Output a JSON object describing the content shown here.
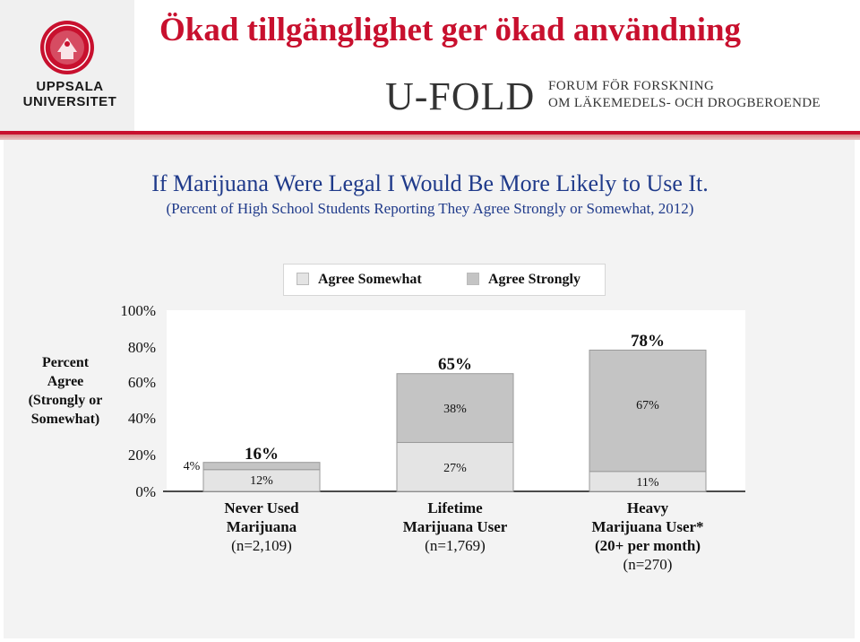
{
  "header": {
    "title": "Ökad tillgänglighet ger ökad användning",
    "university": "UPPSALA UNIVERSITET",
    "university_line1": "UPPSALA",
    "university_line2": "UNIVERSITET",
    "brand": "U-FOLD",
    "forum_line1": "FORUM FÖR FORSKNING",
    "forum_line2": "OM LÄKEMEDELS- OCH DROGBEROENDE"
  },
  "colors": {
    "title_red": "#c8102e",
    "chart_title_blue": "#1f3a8a",
    "agree_somewhat": "#e4e4e4",
    "agree_strongly": "#c4c4c4"
  },
  "chart_data": {
    "type": "bar",
    "stacked": true,
    "title": "If Marijuana Were Legal I Would Be More Likely to Use It.",
    "subtitle": "(Percent of High School Students Reporting They Agree Strongly or Somewhat, 2012)",
    "ylabel": "Percent Agree (Strongly or Somewhat)",
    "ylabel_lines": [
      "Percent",
      "Agree",
      "(Strongly or",
      "Somewhat)"
    ],
    "ylim": [
      0,
      100
    ],
    "yticks": [
      "100%",
      "80%",
      "60%",
      "40%",
      "20%",
      "0%"
    ],
    "legend": [
      "Agree Somewhat",
      "Agree Strongly"
    ],
    "categories": [
      {
        "lines": [
          "Never Used",
          "Marijuana",
          "(n=2,109)"
        ],
        "bold_lines": 2
      },
      {
        "lines": [
          "Lifetime",
          "Marijuana User",
          "(n=1,769)"
        ],
        "bold_lines": 2
      },
      {
        "lines": [
          "Heavy",
          "Marijuana User*",
          "(20+ per month)",
          "(n=270)"
        ],
        "bold_lines": 3
      }
    ],
    "series": [
      {
        "name": "Agree Somewhat",
        "values": [
          12,
          27,
          11
        ],
        "labels": [
          "12%",
          "27%",
          "11%"
        ]
      },
      {
        "name": "Agree Strongly",
        "values": [
          4,
          38,
          67
        ],
        "labels": [
          "4%",
          "38%",
          "67%"
        ]
      }
    ],
    "totals": [
      16,
      65,
      78
    ],
    "total_labels": [
      "16%",
      "65%",
      "78%"
    ]
  }
}
